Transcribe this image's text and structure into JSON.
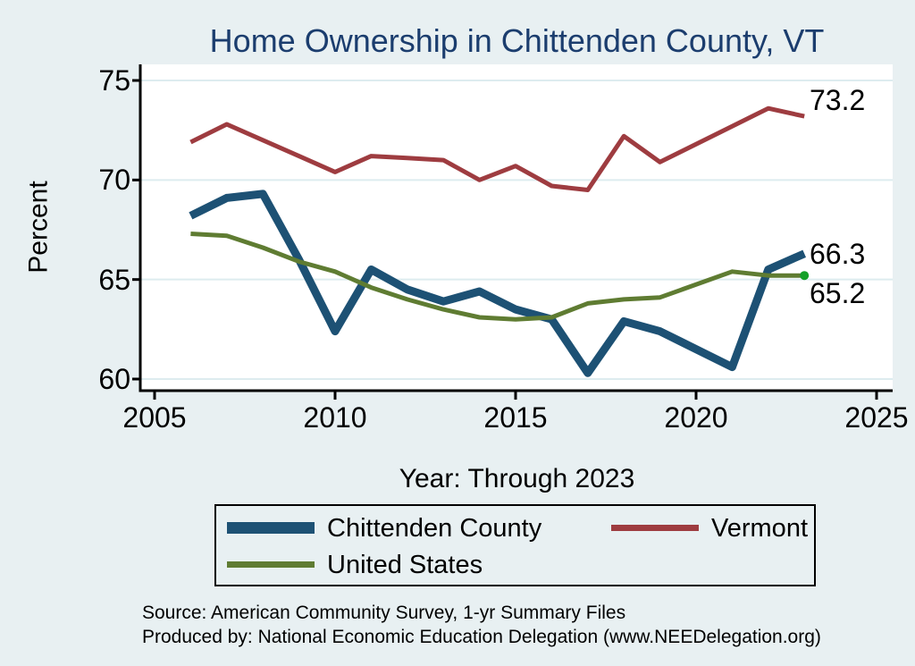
{
  "title": "Home Ownership in Chittenden County, VT",
  "y_axis": {
    "label": "Percent",
    "ticks": [
      75,
      70,
      65,
      60
    ]
  },
  "x_axis": {
    "label": "Year: Through 2023",
    "ticks": [
      2005,
      2010,
      2015,
      2020,
      2025
    ]
  },
  "chart_data": {
    "type": "line",
    "title": "Home Ownership in Chittenden County, VT",
    "xlabel": "Year: Through 2023",
    "ylabel": "Percent",
    "xlim": [
      2004.6,
      2025.5
    ],
    "ylim": [
      59.3,
      75.6
    ],
    "grid": "horizontal-only",
    "legend_position": "bottom",
    "x": [
      2006,
      2007,
      2008,
      2009,
      2010,
      2011,
      2012,
      2013,
      2014,
      2015,
      2016,
      2017,
      2018,
      2019,
      2021,
      2022,
      2023
    ],
    "series": [
      {
        "name": "Chittenden County",
        "color": "#1d5174",
        "line_width": 9,
        "values": [
          68.2,
          69.1,
          69.3,
          66.0,
          62.4,
          65.5,
          64.5,
          63.9,
          64.4,
          63.5,
          63.0,
          60.3,
          62.9,
          62.4,
          60.6,
          65.5,
          66.3
        ]
      },
      {
        "name": "Vermont",
        "color": "#9e3c40",
        "line_width": 5,
        "values": [
          71.9,
          72.8,
          72.0,
          71.2,
          70.4,
          71.2,
          71.1,
          71.0,
          70.0,
          70.7,
          69.7,
          69.5,
          72.2,
          70.9,
          72.7,
          73.6,
          73.2
        ]
      },
      {
        "name": "United States",
        "color": "#5f7c32",
        "line_width": 5,
        "end_marker_color": "#14a028",
        "values": [
          67.3,
          67.2,
          66.6,
          65.9,
          65.4,
          64.6,
          64.0,
          63.5,
          63.1,
          63.0,
          63.1,
          63.8,
          64.0,
          64.1,
          65.4,
          65.2,
          65.2
        ]
      }
    ],
    "end_labels": [
      {
        "series": "Vermont",
        "text": "73.2"
      },
      {
        "series": "Chittenden County",
        "text": "66.3"
      },
      {
        "series": "United States",
        "text": "65.2"
      }
    ]
  },
  "legend": {
    "items": [
      {
        "label": "Chittenden County"
      },
      {
        "label": "Vermont"
      },
      {
        "label": "United States"
      }
    ]
  },
  "source_lines": [
    "Source: American Community Survey, 1-yr Summary Files",
    "Produced by: National Economic Education Delegation (www.NEEDelegation.org)"
  ],
  "colors": {
    "background": "#e8f0f2",
    "plot_background": "#ffffff",
    "title": "#1b3d6e",
    "gridline": "#ddecef",
    "axis": "#000000"
  }
}
